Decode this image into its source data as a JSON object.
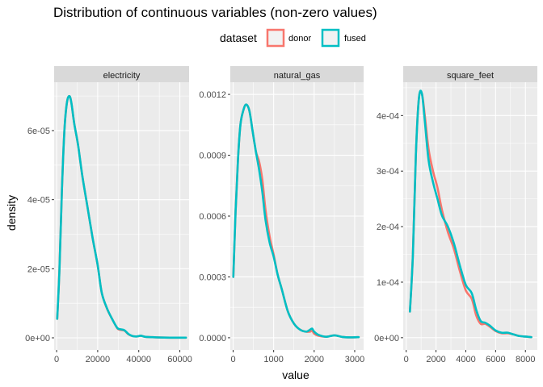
{
  "chart_data": {
    "type": "line",
    "title": "Distribution of continuous variables (non-zero values)",
    "xlabel": "value",
    "ylabel": "density",
    "grid": true,
    "legend": {
      "title": "dataset",
      "position": "top",
      "entries": [
        {
          "name": "donor",
          "color": "#F8766D"
        },
        {
          "name": "fused",
          "color": "#00BFC4"
        }
      ]
    },
    "panels": [
      {
        "name": "electricity",
        "xlim": [
          -1200,
          64500
        ],
        "ylim": [
          -3.5e-06,
          7.4e-05
        ],
        "xticks": [
          0,
          20000,
          40000,
          60000
        ],
        "xtick_labels": [
          "0",
          "20000",
          "40000",
          "60000"
        ],
        "yticks": [
          0,
          2e-05,
          4e-05,
          6e-05
        ],
        "ytick_labels": [
          "0e+00",
          "2e-05",
          "4e-05",
          "6e-05"
        ],
        "series": [
          {
            "name": "donor",
            "x": [
              300,
              1400,
              2600,
              3800,
              5000,
              6200,
              7200,
              8600,
              10400,
              12500,
              15000,
              17500,
              20000,
              22000,
              24500,
              27000,
              29500,
              31000,
              33000,
              35000,
              37000,
              39000,
              41000,
              43000,
              46000,
              50000,
              55000,
              60000,
              63000
            ],
            "y": [
              5.5e-06,
              2e-05,
              4.3e-05,
              6e-05,
              6.8e-05,
              7e-05,
              6.8e-05,
              6.2e-05,
              5.6e-05,
              4.7e-05,
              3.8e-05,
              2.9e-05,
              2.1e-05,
              1.3e-05,
              8.5e-06,
              5.5e-06,
              2.8e-06,
              2.3e-06,
              2.1e-06,
              1e-06,
              5e-07,
              4e-07,
              6e-07,
              3e-07,
              2e-07,
              1e-07,
              5e-08,
              5e-08,
              5e-08
            ]
          },
          {
            "name": "fused",
            "x": [
              300,
              1400,
              2600,
              3800,
              5000,
              6200,
              7200,
              8600,
              10400,
              12500,
              15000,
              17500,
              20000,
              22000,
              24500,
              27000,
              29500,
              31000,
              33000,
              35000,
              37000,
              39000,
              41000,
              43000,
              46000,
              50000,
              55000,
              60000,
              63000
            ],
            "y": [
              5.5e-06,
              2e-05,
              4.3e-05,
              6e-05,
              6.8e-05,
              7e-05,
              6.8e-05,
              6.2e-05,
              5.6e-05,
              4.7e-05,
              3.8e-05,
              2.9e-05,
              2.1e-05,
              1.3e-05,
              8.6e-06,
              5.5e-06,
              2.9e-06,
              2.5e-06,
              2.2e-06,
              1.1e-06,
              5e-07,
              4e-07,
              6e-07,
              3e-07,
              2e-07,
              1e-07,
              5e-08,
              5e-08,
              5e-08
            ]
          }
        ]
      },
      {
        "name": "natural_gas",
        "xlim": [
          -70,
          3220
        ],
        "ylim": [
          -6e-05,
          0.00126
        ],
        "xticks": [
          0,
          1000,
          2000,
          3000
        ],
        "xtick_labels": [
          "0",
          "1000",
          "2000",
          "3000"
        ],
        "yticks": [
          0,
          0.0003,
          0.0006,
          0.0009,
          0.0012
        ],
        "ytick_labels": [
          "0.0000",
          "0.0003",
          "0.0006",
          "0.0009",
          "0.0012"
        ],
        "series": [
          {
            "name": "donor",
            "x": [
              5,
              60,
              120,
              180,
              250,
              320,
              400,
              480,
              560,
              640,
              720,
              800,
              900,
              1000,
              1100,
              1200,
              1350,
              1500,
              1650,
              1800,
              1900,
              1950,
              2000,
              2100,
              2300,
              2500,
              2700,
              2900,
              3100
            ],
            "y": [
              0.0003,
              0.00062,
              0.00088,
              0.00105,
              0.00112,
              0.00115,
              0.00112,
              0.00102,
              0.00092,
              0.00087,
              0.00078,
              0.00063,
              0.0005,
              0.00041,
              0.00031,
              0.00024,
              0.00013,
              7e-05,
              4e-05,
              3e-05,
              3e-05,
              3.5e-05,
              2e-05,
              1e-05,
              5e-06,
              1.2e-05,
              4e-06,
              2e-06,
              3e-06
            ]
          },
          {
            "name": "fused",
            "x": [
              5,
              60,
              120,
              180,
              250,
              320,
              400,
              480,
              560,
              640,
              720,
              800,
              900,
              1000,
              1100,
              1200,
              1350,
              1500,
              1650,
              1800,
              1900,
              1950,
              2000,
              2100,
              2300,
              2500,
              2700,
              2900,
              3100
            ],
            "y": [
              0.0003,
              0.00062,
              0.00088,
              0.00105,
              0.00112,
              0.00115,
              0.00112,
              0.00102,
              0.00092,
              0.00083,
              0.00072,
              0.00058,
              0.00047,
              0.0004,
              0.00031,
              0.00024,
              0.00013,
              7e-05,
              4e-05,
              3e-05,
              4e-05,
              4.5e-05,
              3e-05,
              1.5e-05,
              5e-06,
              1.2e-05,
              4e-06,
              2e-06,
              3e-06
            ]
          }
        ]
      },
      {
        "name": "square_feet",
        "xlim": [
          -200,
          8800
        ],
        "ylim": [
          -2.2e-05,
          0.00046
        ],
        "xticks": [
          0,
          2000,
          4000,
          6000,
          8000
        ],
        "xtick_labels": [
          "0",
          "2000",
          "4000",
          "6000",
          "8000"
        ],
        "yticks": [
          0,
          0.0001,
          0.0002,
          0.0003,
          0.0004
        ],
        "ytick_labels": [
          "0e+00",
          "1e-04",
          "2e-04",
          "3e-04",
          "4e-04"
        ],
        "series": [
          {
            "name": "donor",
            "x": [
              250,
              450,
              650,
              850,
              1050,
              1250,
              1500,
              1800,
              2100,
              2400,
              2800,
              3200,
              3600,
              4000,
              4400,
              4700,
              5000,
              5300,
              5600,
              6000,
              6400,
              6800,
              7200,
              7600,
              8000,
              8400
            ],
            "y": [
              4.7e-05,
              0.00015,
              0.00033,
              0.00043,
              0.00044,
              0.0004,
              0.00034,
              0.0003,
              0.00027,
              0.00023,
              0.00019,
              0.00016,
              0.00012,
              8.5e-05,
              7e-05,
              4e-05,
              2.5e-05,
              2.5e-05,
              2e-05,
              1.2e-05,
              8e-06,
              8e-06,
              6e-06,
              3e-06,
              2e-06,
              1e-06
            ]
          },
          {
            "name": "fused",
            "x": [
              250,
              450,
              650,
              850,
              1050,
              1250,
              1500,
              1800,
              2100,
              2400,
              2800,
              3200,
              3600,
              4000,
              4400,
              4700,
              5000,
              5300,
              5600,
              6000,
              6400,
              6800,
              7200,
              7600,
              8000,
              8400
            ],
            "y": [
              4.7e-05,
              0.00015,
              0.00033,
              0.00043,
              0.00044,
              0.00039,
              0.00032,
              0.00028,
              0.00025,
              0.00022,
              0.0002,
              0.00017,
              0.00013,
              9.5e-05,
              8e-05,
              5e-05,
              3e-05,
              2.7e-05,
              2.2e-05,
              1.3e-05,
              9e-06,
              9e-06,
              6e-06,
              3e-06,
              2e-06,
              1e-06
            ]
          }
        ]
      }
    ]
  }
}
